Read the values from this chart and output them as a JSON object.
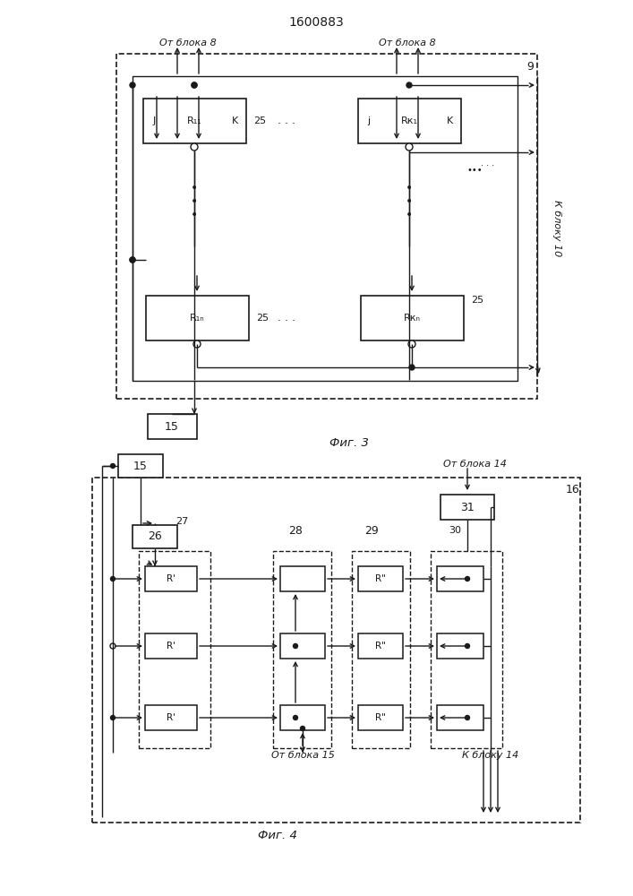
{
  "title": "1600883",
  "fig3_label": "Фиг. 3",
  "fig4_label": "Фиг. 4",
  "label_ot_bloka8_left": "От блока 8",
  "label_ot_bloka8_right": "От блока 8",
  "label_k_bloku10": "К блоку 10",
  "label_ot_bloka14": "От блока 14",
  "label_ot_bloka15": "От блока 15",
  "label_k_bloku14": "К блоку 14",
  "bg_color": "#ffffff",
  "lc": "#1a1a1a"
}
